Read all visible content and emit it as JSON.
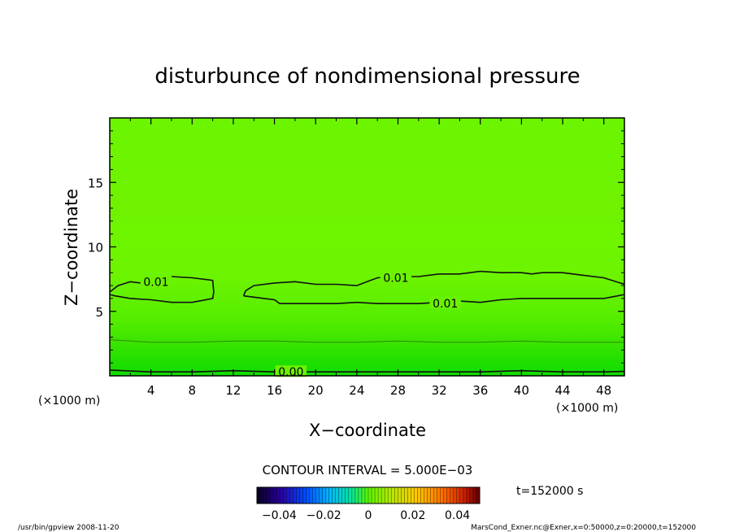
{
  "chart_data": {
    "type": "heatmap",
    "title": "disturbunce of nondimensional pressure",
    "xlabel": "X−coordinate",
    "ylabel": "Z−coordinate",
    "x_unit_left": "(×1000 m)",
    "x_unit_right": "(×1000 m)",
    "xlim": [
      0,
      50
    ],
    "ylim": [
      0,
      20
    ],
    "x_ticks": [
      4,
      8,
      12,
      16,
      20,
      24,
      28,
      32,
      36,
      40,
      44,
      48
    ],
    "x_tick_labels": [
      "4",
      "8",
      "12",
      "16",
      "20",
      "24",
      "28",
      "32",
      "36",
      "40",
      "44",
      "48"
    ],
    "y_ticks": [
      5,
      10,
      15
    ],
    "y_tick_labels": [
      "5",
      "10",
      "15"
    ],
    "contour_interval_text": "CONTOUR INTERVAL = 5.000E−03",
    "contour_levels": [
      0.0,
      0.005,
      0.01
    ],
    "contour_labels": [
      {
        "text": "0.01",
        "x": 4.5,
        "z": 7.3
      },
      {
        "text": "0.01",
        "x": 27.8,
        "z": 7.6
      },
      {
        "text": "0.01",
        "x": 32.6,
        "z": 5.6
      },
      {
        "text": "0.00",
        "x": 17.6,
        "z": 0.3
      }
    ],
    "contours": [
      {
        "level": 0.01,
        "points": [
          [
            0,
            6.5
          ],
          [
            0.8,
            7.0
          ],
          [
            2,
            7.3
          ],
          [
            3,
            7.2
          ],
          [
            6,
            7.7
          ],
          [
            8,
            7.6
          ],
          [
            10,
            7.4
          ],
          [
            10.1,
            6.5
          ],
          [
            10,
            6.0
          ],
          [
            8,
            5.7
          ],
          [
            6,
            5.7
          ],
          [
            4,
            5.9
          ],
          [
            2,
            6.0
          ],
          [
            0.5,
            6.2
          ],
          [
            0,
            6.3
          ]
        ]
      },
      {
        "level": 0.01,
        "points": [
          [
            13,
            6.2
          ],
          [
            13.2,
            6.6
          ],
          [
            14,
            7.0
          ],
          [
            16,
            7.2
          ],
          [
            18,
            7.3
          ],
          [
            20,
            7.1
          ],
          [
            22,
            7.1
          ],
          [
            24,
            7.0
          ],
          [
            25,
            7.3
          ],
          [
            26,
            7.6
          ],
          [
            28,
            7.7
          ],
          [
            30,
            7.7
          ],
          [
            32,
            7.9
          ],
          [
            34,
            7.9
          ],
          [
            35,
            8.0
          ],
          [
            36,
            8.1
          ],
          [
            38,
            8.0
          ],
          [
            40,
            8.0
          ],
          [
            41,
            7.9
          ],
          [
            42,
            8.0
          ],
          [
            44,
            8.0
          ],
          [
            46,
            7.8
          ],
          [
            48,
            7.6
          ],
          [
            50,
            7.1
          ]
        ]
      },
      {
        "level": 0.01,
        "points": [
          [
            13,
            6.2
          ],
          [
            14,
            6.1
          ],
          [
            15,
            6.0
          ],
          [
            16,
            5.9
          ],
          [
            16.5,
            5.6
          ],
          [
            18,
            5.6
          ],
          [
            20,
            5.6
          ],
          [
            22,
            5.6
          ],
          [
            24,
            5.7
          ],
          [
            26,
            5.6
          ],
          [
            28,
            5.6
          ],
          [
            30,
            5.6
          ],
          [
            32,
            5.7
          ],
          [
            34,
            5.8
          ],
          [
            36,
            5.7
          ],
          [
            38,
            5.9
          ],
          [
            40,
            6.0
          ],
          [
            42,
            6.0
          ],
          [
            44,
            6.0
          ],
          [
            46,
            6.0
          ],
          [
            48,
            6.0
          ],
          [
            50,
            6.3
          ]
        ]
      },
      {
        "level": 0.005,
        "points": [
          [
            0,
            2.8
          ],
          [
            4,
            2.6
          ],
          [
            8,
            2.6
          ],
          [
            12,
            2.7
          ],
          [
            16,
            2.7
          ],
          [
            20,
            2.6
          ],
          [
            24,
            2.6
          ],
          [
            28,
            2.7
          ],
          [
            32,
            2.6
          ],
          [
            36,
            2.6
          ],
          [
            40,
            2.7
          ],
          [
            44,
            2.6
          ],
          [
            48,
            2.6
          ],
          [
            50,
            2.6
          ]
        ]
      },
      {
        "level": 0.0,
        "points": [
          [
            0,
            0.45
          ],
          [
            4,
            0.3
          ],
          [
            8,
            0.3
          ],
          [
            12,
            0.4
          ],
          [
            16,
            0.3
          ],
          [
            20,
            0.3
          ],
          [
            24,
            0.3
          ],
          [
            28,
            0.3
          ],
          [
            32,
            0.3
          ],
          [
            36,
            0.3
          ],
          [
            40,
            0.4
          ],
          [
            44,
            0.3
          ],
          [
            48,
            0.3
          ],
          [
            50,
            0.35
          ]
        ]
      }
    ],
    "colorbar": {
      "range": [
        -0.05,
        0.05
      ],
      "tick_values": [
        -0.04,
        -0.02,
        0,
        0.02,
        0.04
      ],
      "tick_labels": [
        "−0.04",
        "−0.02",
        "0",
        "0.02",
        "0.04"
      ]
    },
    "time_label": "t=152000 s",
    "grid": false
  },
  "footer": {
    "left": "/usr/bin/gpview   2008-11-20",
    "right": "MarsCond_Exner.nc@Exner,x=0:50000,z=0:20000,t=152000"
  }
}
